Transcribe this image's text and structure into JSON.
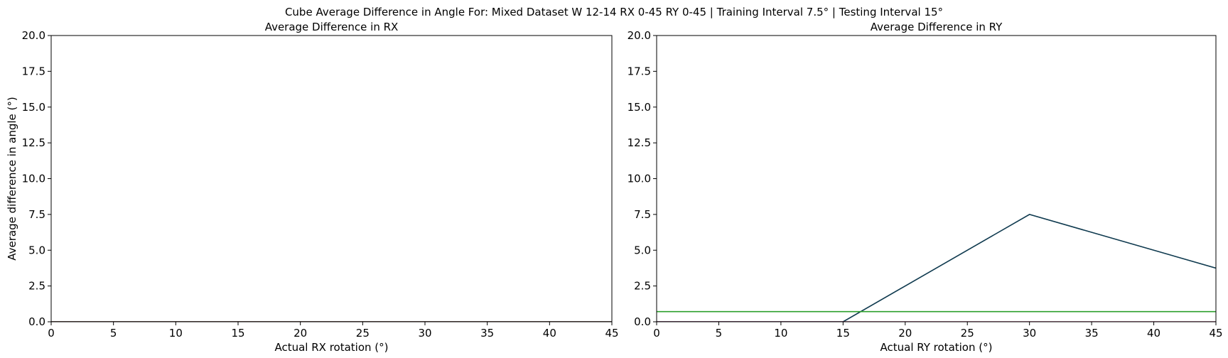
{
  "figure": {
    "suptitle": "Cube Average Difference in Angle For: Mixed Dataset W 12-14 RX 0-45 RY 0-45 | Training Interval 7.5° | Testing Interval 15°"
  },
  "chart_data": [
    {
      "type": "line",
      "title": "Average Difference in RX",
      "xlabel": "Actual RX rotation (°)",
      "ylabel": "Average difference in angle (°)",
      "xlim": [
        0,
        45
      ],
      "ylim": [
        0,
        20
      ],
      "x_ticks": [
        "0",
        "5",
        "10",
        "15",
        "20",
        "25",
        "30",
        "35",
        "40",
        "45"
      ],
      "y_ticks": [
        "0.0",
        "2.5",
        "5.0",
        "7.5",
        "10.0",
        "12.5",
        "15.0",
        "17.5",
        "20.0"
      ],
      "grid": false,
      "series": [
        {
          "color": "#1f3b4d",
          "x": [
            0,
            15,
            30,
            45
          ],
          "y": [
            0,
            0,
            0,
            0
          ]
        },
        {
          "color": "#2ca02c",
          "x": [
            0,
            45
          ],
          "y": [
            0,
            0
          ]
        },
        {
          "color": "#8b2252",
          "x": [
            0,
            45
          ],
          "y": [
            0,
            0
          ]
        }
      ]
    },
    {
      "type": "line",
      "title": "Average Difference in RY",
      "xlabel": "Actual RY rotation (°)",
      "ylabel": "",
      "xlim": [
        0,
        45
      ],
      "ylim": [
        0,
        20
      ],
      "x_ticks": [
        "0",
        "5",
        "10",
        "15",
        "20",
        "25",
        "30",
        "35",
        "40",
        "45"
      ],
      "y_ticks": [
        "0.0",
        "2.5",
        "5.0",
        "7.5",
        "10.0",
        "12.5",
        "15.0",
        "17.5",
        "20.0"
      ],
      "grid": false,
      "series": [
        {
          "color": "#0f3a4f",
          "x": [
            0,
            15,
            30,
            45
          ],
          "y": [
            0,
            0,
            7.5,
            3.75
          ]
        },
        {
          "color": "#2ca02c",
          "x": [
            0,
            45
          ],
          "y": [
            0.71,
            0.71
          ]
        },
        {
          "color": "#8b2252",
          "x": [
            0,
            45
          ],
          "y": [
            0,
            0
          ]
        }
      ]
    }
  ]
}
